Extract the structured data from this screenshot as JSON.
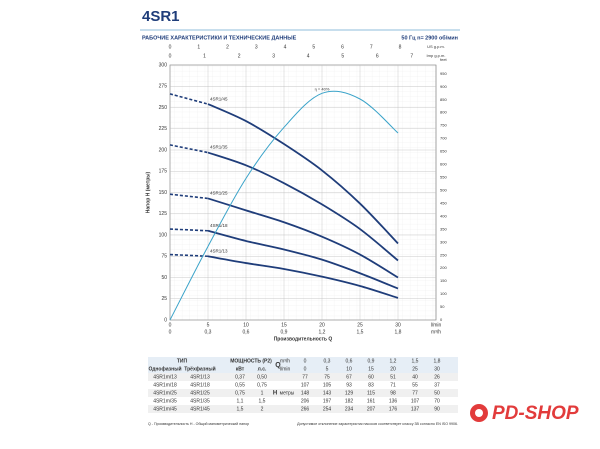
{
  "header": {
    "title": "4SR1",
    "subtitle": "РАБОЧИЕ ХАРАКТЕРИСТИКИ И ТЕХНИЧЕСКИЕ ДАННЫЕ",
    "conditions": "50 Гц   n= 2900 об/мин"
  },
  "chart_data": {
    "type": "line",
    "y_label": "Напор H (метры)",
    "x_label": "Производительность Q",
    "x_unit": "l/min",
    "x": [
      0,
      5,
      10,
      15,
      20,
      25,
      30
    ],
    "xlim": [
      0,
      35
    ],
    "xticks": [
      0,
      5,
      10,
      15,
      20,
      25,
      30
    ],
    "ylim": [
      0,
      300
    ],
    "yticks": [
      0,
      25,
      50,
      75,
      100,
      125,
      150,
      175,
      200,
      225,
      250,
      275,
      300
    ],
    "grid": true,
    "y2lim": [
      0,
      45
    ],
    "series": [
      {
        "name": "4SR1/45",
        "color": "#1f3d7a",
        "values": [
          266,
          254,
          234,
          207,
          176,
          137,
          90
        ]
      },
      {
        "name": "4SR1/35",
        "color": "#1f3d7a",
        "values": [
          206,
          197,
          182,
          161,
          136,
          107,
          70
        ]
      },
      {
        "name": "4SR1/25",
        "color": "#1f3d7a",
        "values": [
          148,
          143,
          129,
          115,
          98,
          77,
          50
        ]
      },
      {
        "name": "4SR1/18",
        "color": "#1f3d7a",
        "values": [
          107,
          105,
          93,
          83,
          71,
          55,
          37
        ]
      },
      {
        "name": "4SR1/13",
        "color": "#1f3d7a",
        "values": [
          77,
          75,
          67,
          60,
          51,
          40,
          26
        ]
      },
      {
        "label": "η = 40%",
        "axis": "y2",
        "color": "#3aa3c9",
        "values": [
          0,
          13,
          25,
          34,
          40,
          39,
          33
        ]
      }
    ],
    "bottom_axis": {
      "unit": "m³/h",
      "lim": [
        0,
        2.1
      ],
      "ticks": [
        0,
        {
          "value": 0.3,
          "label": "0,3"
        },
        {
          "value": 0.6,
          "label": "0,6"
        },
        {
          "value": 0.9,
          "label": "0,9"
        },
        {
          "value": 1.2,
          "label": "1,2"
        },
        {
          "value": 1.5,
          "label": "1,5"
        },
        {
          "value": 1.8,
          "label": "1,8"
        }
      ]
    },
    "top_axes": [
      {
        "unit": "US g.p.m.",
        "lim": [
          0,
          9.25
        ],
        "ticks": [
          0,
          1,
          2,
          3,
          4,
          5,
          6,
          7,
          8
        ]
      },
      {
        "unit": "Imp g.p.m.",
        "lim": [
          0,
          7.7
        ],
        "ticks": [
          0,
          1,
          2,
          3,
          4,
          5,
          6,
          7
        ]
      }
    ],
    "right_axis": {
      "unit": "feet",
      "lim": [
        0,
        984
      ],
      "ticks": [
        0,
        50,
        100,
        150,
        200,
        250,
        300,
        350,
        400,
        450,
        500,
        550,
        600,
        650,
        700,
        750,
        800,
        850,
        900,
        950
      ]
    }
  },
  "table": {
    "type_header": "ТИП",
    "power_header": "МОЩНОСТЬ (P2)",
    "q_label": "Q",
    "q_units": [
      "m³/h",
      "l/min"
    ],
    "col_heads": [
      "Однофазный",
      "Трёхфазный",
      "кВт",
      "л.с."
    ],
    "h_label": "H",
    "h_unit": "метры",
    "q_m3h": [
      "0",
      "0,3",
      "0,6",
      "0,9",
      "1,2",
      "1,5",
      "1,8"
    ],
    "q_lmin": [
      "0",
      "5",
      "10",
      "15",
      "20",
      "25",
      "30"
    ],
    "rows": [
      [
        "4SR1m/13",
        "4SR1/13",
        "0,37",
        "0,50",
        "77",
        "75",
        "67",
        "60",
        "51",
        "40",
        "26"
      ],
      [
        "4SR1m/18",
        "4SR1/18",
        "0,55",
        "0,75",
        "107",
        "105",
        "93",
        "83",
        "71",
        "55",
        "37"
      ],
      [
        "4SR1m/25",
        "4SR1/25",
        "0,75",
        "1",
        "148",
        "143",
        "129",
        "115",
        "98",
        "77",
        "50"
      ],
      [
        "4SR1m/35",
        "4SR1/35",
        "1,1",
        "1,5",
        "206",
        "197",
        "182",
        "161",
        "136",
        "107",
        "70"
      ],
      [
        "4SR1m/45",
        "4SR1/45",
        "1,5",
        "2",
        "266",
        "254",
        "234",
        "207",
        "176",
        "137",
        "90"
      ]
    ]
  },
  "footer": {
    "left": "Q - Производительность   H - Общий манометрический напор",
    "right": "Допустимое отклонение характеристик насосов соответствует классу 3В согласно EN ISO 9906."
  },
  "logo": {
    "text": "PD-SHOP"
  }
}
